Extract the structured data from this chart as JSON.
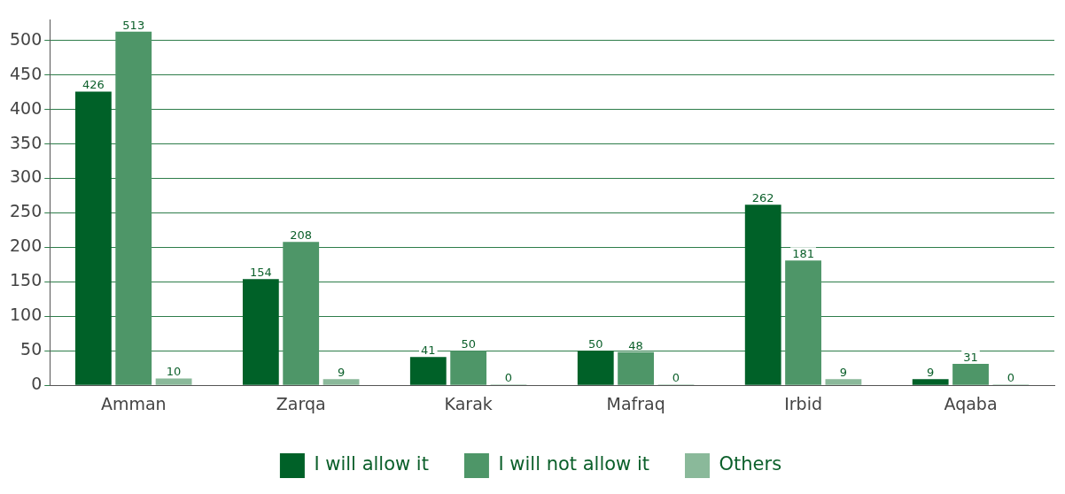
{
  "chart_data": {
    "type": "bar",
    "categories": [
      "Amman",
      "Zarqa",
      "Karak",
      "Mafraq",
      "Irbid",
      "Aqaba"
    ],
    "series": [
      {
        "name": "I will allow it",
        "color": "#006128",
        "values": [
          426,
          154,
          41,
          50,
          262,
          9
        ]
      },
      {
        "name": "I will not allow it",
        "color": "#4e9668",
        "values": [
          513,
          208,
          50,
          48,
          181,
          31
        ]
      },
      {
        "name": "Others",
        "color": "#8ab99a",
        "values": [
          10,
          9,
          0,
          0,
          9,
          0
        ]
      }
    ],
    "ylim": [
      0,
      530
    ],
    "yticks": [
      0,
      50,
      100,
      150,
      200,
      250,
      300,
      350,
      400,
      450,
      500
    ],
    "grid": "y",
    "legend": "bottom",
    "data_labels": true
  }
}
